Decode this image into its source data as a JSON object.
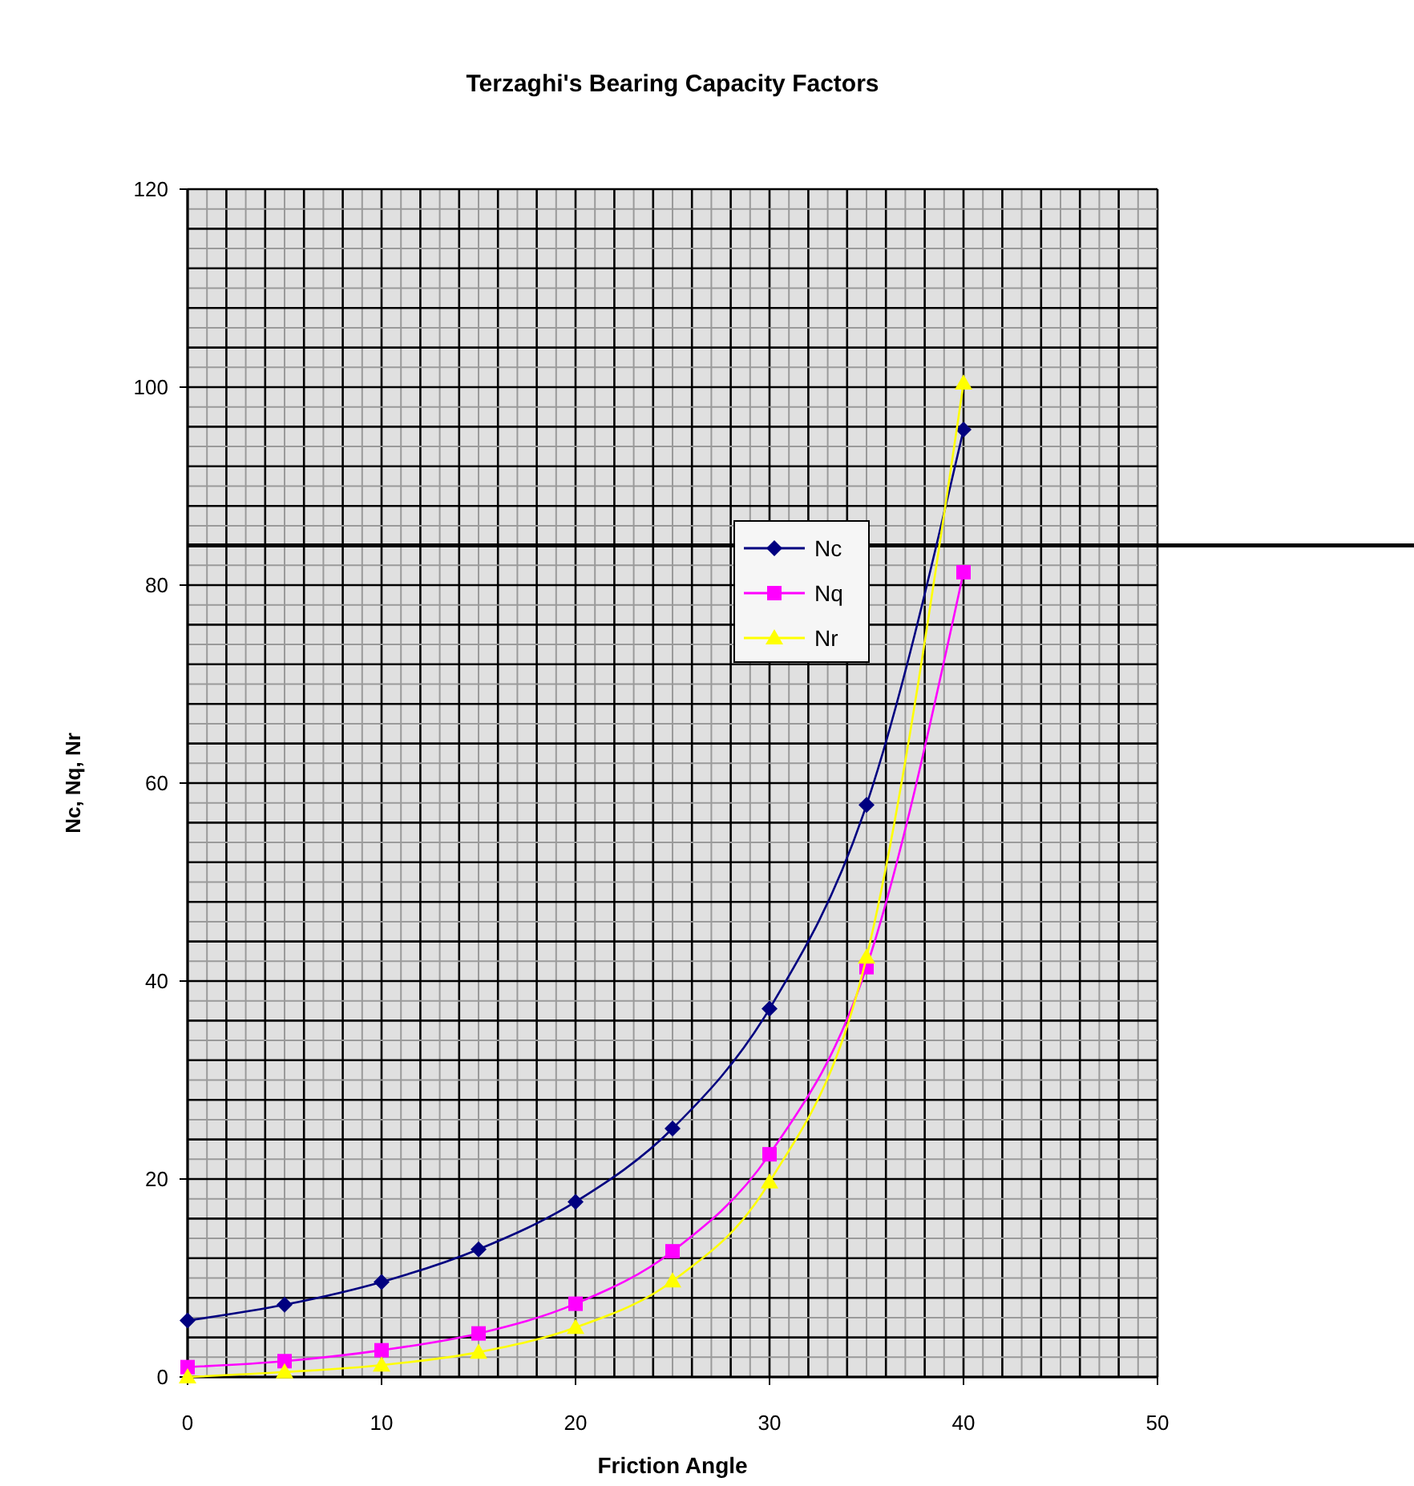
{
  "chart_data": {
    "type": "line",
    "title": "Terzaghi's Bearing Capacity Factors",
    "xlabel": "Friction Angle",
    "ylabel": "Nc, Nq, Nr",
    "x": [
      0,
      5,
      10,
      15,
      20,
      25,
      30,
      35,
      40
    ],
    "series": [
      {
        "name": "Nc",
        "color": "#000080",
        "marker": "diamond",
        "values": [
          5.7,
          7.3,
          9.6,
          12.9,
          17.7,
          25.1,
          37.2,
          57.8,
          95.7
        ]
      },
      {
        "name": "Nq",
        "color": "#ff00ff",
        "marker": "square",
        "values": [
          1.0,
          1.6,
          2.7,
          4.4,
          7.4,
          12.7,
          22.5,
          41.4,
          81.3
        ]
      },
      {
        "name": "Nr",
        "color": "#ffff00",
        "marker": "triangle",
        "values": [
          0.0,
          0.5,
          1.2,
          2.5,
          5.0,
          9.7,
          19.7,
          42.4,
          100.4
        ]
      }
    ],
    "xlim": [
      0,
      50
    ],
    "xticks": [
      0,
      {
        "value": 1,
        "label": null
      },
      {
        "value": 2,
        "label": null
      },
      {
        "value": 3,
        "label": null
      },
      {
        "value": 4,
        "label": null
      },
      {
        "value": 5,
        "label": null
      },
      {
        "value": 6,
        "label": null
      },
      {
        "value": 7,
        "label": null
      },
      {
        "value": 8,
        "label": null
      },
      {
        "value": 9,
        "label": null
      },
      10,
      {
        "value": 11,
        "label": null
      },
      {
        "value": 12,
        "label": null
      },
      {
        "value": 13,
        "label": null
      },
      {
        "value": 14,
        "label": null
      },
      {
        "value": 15,
        "label": null
      },
      {
        "value": 16,
        "label": null
      },
      {
        "value": 17,
        "label": null
      },
      {
        "value": 18,
        "label": null
      },
      {
        "value": 19,
        "label": null
      },
      20,
      {
        "value": 21,
        "label": null
      },
      {
        "value": 22,
        "label": null
      },
      {
        "value": 23,
        "label": null
      },
      {
        "value": 24,
        "label": null
      },
      {
        "value": 25,
        "label": null
      },
      {
        "value": 26,
        "label": null
      },
      {
        "value": 27,
        "label": null
      },
      {
        "value": 28,
        "label": null
      },
      {
        "value": 29,
        "label": null
      },
      30,
      {
        "value": 31,
        "label": null
      },
      {
        "value": 32,
        "label": null
      },
      {
        "value": 33,
        "label": null
      },
      {
        "value": 34,
        "label": null
      },
      {
        "value": 35,
        "label": null
      },
      {
        "value": 36,
        "label": null
      },
      {
        "value": 37,
        "label": null
      },
      {
        "value": 38,
        "label": null
      },
      {
        "value": 39,
        "label": null
      },
      40,
      {
        "value": 41,
        "label": null
      },
      {
        "value": 42,
        "label": null
      },
      {
        "value": 43,
        "label": null
      },
      {
        "value": 44,
        "label": null
      },
      {
        "value": 45,
        "label": null
      },
      {
        "value": 46,
        "label": null
      },
      {
        "value": 47,
        "label": null
      },
      {
        "value": 48,
        "label": null
      },
      {
        "value": 49,
        "label": null
      },
      50
    ],
    "ylim": [
      0,
      120
    ],
    "yticks": [
      0,
      {
        "value": 2,
        "label": null
      },
      {
        "value": 4,
        "label": null
      },
      {
        "value": 6,
        "label": null
      },
      {
        "value": 8,
        "label": null
      },
      {
        "value": 10,
        "label": null
      },
      {
        "value": 12,
        "label": null
      },
      {
        "value": 14,
        "label": null
      },
      {
        "value": 16,
        "label": null
      },
      {
        "value": 18,
        "label": null
      },
      20,
      {
        "value": 22,
        "label": null
      },
      {
        "value": 24,
        "label": null
      },
      {
        "value": 26,
        "label": null
      },
      {
        "value": 28,
        "label": null
      },
      {
        "value": 30,
        "label": null
      },
      {
        "value": 32,
        "label": null
      },
      {
        "value": 34,
        "label": null
      },
      {
        "value": 36,
        "label": null
      },
      {
        "value": 38,
        "label": null
      },
      40,
      {
        "value": 42,
        "label": null
      },
      {
        "value": 44,
        "label": null
      },
      {
        "value": 46,
        "label": null
      },
      {
        "value": 48,
        "label": null
      },
      {
        "value": 50,
        "label": null
      },
      {
        "value": 52,
        "label": null
      },
      {
        "value": 54,
        "label": null
      },
      {
        "value": 56,
        "label": null
      },
      {
        "value": 58,
        "label": null
      },
      60,
      {
        "value": 62,
        "label": null
      },
      {
        "value": 64,
        "label": null
      },
      {
        "value": 66,
        "label": null
      },
      {
        "value": 68,
        "label": null
      },
      {
        "value": 70,
        "label": null
      },
      {
        "value": 72,
        "label": null
      },
      {
        "value": 74,
        "label": null
      },
      {
        "value": 76,
        "label": null
      },
      {
        "value": 78,
        "label": null
      },
      80,
      {
        "value": 82,
        "label": null
      },
      {
        "value": 84,
        "label": null
      },
      {
        "value": 86,
        "label": null
      },
      {
        "value": 88,
        "label": null
      },
      {
        "value": 90,
        "label": null
      },
      {
        "value": 92,
        "label": null
      },
      {
        "value": 94,
        "label": null
      },
      {
        "value": 96,
        "label": null
      },
      {
        "value": 98,
        "label": null
      },
      100,
      {
        "value": 102,
        "label": null
      },
      {
        "value": 104,
        "label": null
      },
      {
        "value": 106,
        "label": null
      },
      {
        "value": 108,
        "label": null
      },
      {
        "value": 110,
        "label": null
      },
      {
        "value": 112,
        "label": null
      },
      {
        "value": 114,
        "label": null
      },
      {
        "value": 116,
        "label": null
      },
      {
        "value": 118,
        "label": null
      },
      120
    ],
    "ref_lines": [
      {
        "axis": "y",
        "value": 84,
        "color": "#000000"
      }
    ],
    "grid": true,
    "legend": "right",
    "line_style": "solid"
  }
}
